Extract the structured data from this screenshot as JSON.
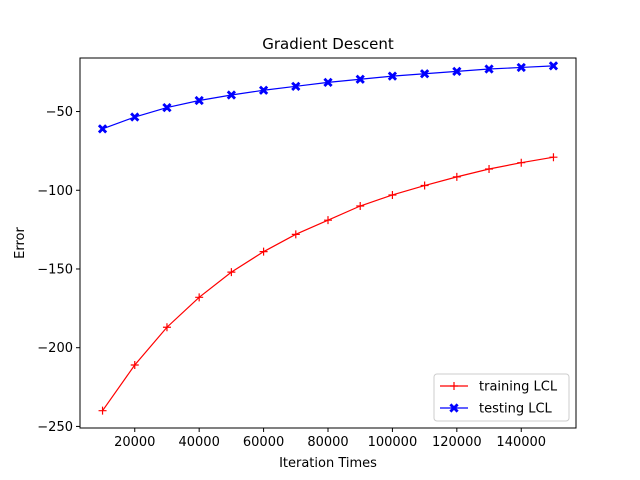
{
  "chart_data": {
    "type": "line",
    "title": "Gradient Descent",
    "xlabel": "Iteration Times",
    "ylabel": "Error",
    "xlim": [
      3000,
      157000
    ],
    "ylim": [
      -251,
      -16
    ],
    "xticks": [
      20000,
      40000,
      60000,
      80000,
      100000,
      120000,
      140000
    ],
    "xtick_labels": [
      "20000",
      "40000",
      "60000",
      "80000",
      "100000",
      "120000",
      "140000"
    ],
    "yticks": [
      -250,
      -200,
      -150,
      -100,
      -50
    ],
    "ytick_labels": [
      "−250",
      "−200",
      "−150",
      "−100",
      "−50"
    ],
    "grid": false,
    "legend_position": "lower-right",
    "x": [
      10000,
      20000,
      30000,
      40000,
      50000,
      60000,
      70000,
      80000,
      90000,
      100000,
      110000,
      120000,
      130000,
      140000,
      150000
    ],
    "series": [
      {
        "name": "training LCL",
        "color": "#ff0000",
        "marker": "plus",
        "values": [
          -240,
          -211,
          -187,
          -168,
          -152,
          -139,
          -128,
          -119,
          -110,
          -103,
          -97,
          -91.5,
          -86.5,
          -82.5,
          -79
        ]
      },
      {
        "name": "testing LCL",
        "color": "#0000ff",
        "marker": "x-filled",
        "values": [
          -61,
          -53.5,
          -47.5,
          -43,
          -39.5,
          -36.5,
          -34,
          -31.5,
          -29.5,
          -27.5,
          -26,
          -24.5,
          -23,
          -22,
          -21
        ]
      }
    ]
  }
}
